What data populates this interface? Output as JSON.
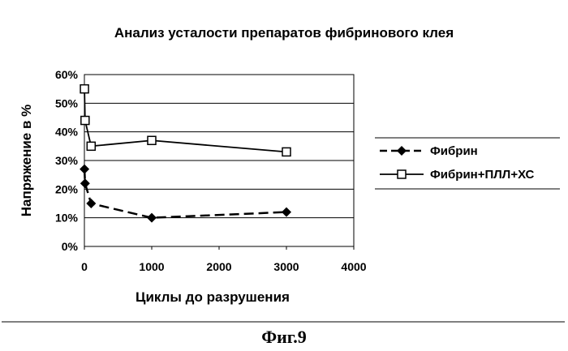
{
  "chart_data": {
    "type": "line",
    "title": "Анализ усталости препаратов фибринового клея",
    "xlabel": "Циклы до разрушения",
    "ylabel": "Напряжение в %",
    "xlim": [
      0,
      4000
    ],
    "ylim": [
      0,
      60
    ],
    "xticks": [
      "0",
      "1000",
      "2000",
      "3000",
      "4000"
    ],
    "yticks": [
      "0%",
      "10%",
      "20%",
      "30%",
      "40%",
      "50%",
      "60%"
    ],
    "grid": "horizontal",
    "legend_position": "right",
    "series": [
      {
        "name": "Фибрин",
        "color": "#000000",
        "line_style": "dashed",
        "marker": "diamond",
        "x": [
          1,
          10,
          100,
          1000,
          3000
        ],
        "y": [
          27,
          22,
          15,
          10,
          12
        ]
      },
      {
        "name": "Фибрин+ПЛЛ+ХС",
        "color": "#000000",
        "line_style": "solid",
        "marker": "square",
        "x": [
          1,
          10,
          100,
          1000,
          3000
        ],
        "y": [
          55,
          44,
          35,
          37,
          33
        ]
      }
    ]
  },
  "figure_caption": "Фиг.9"
}
